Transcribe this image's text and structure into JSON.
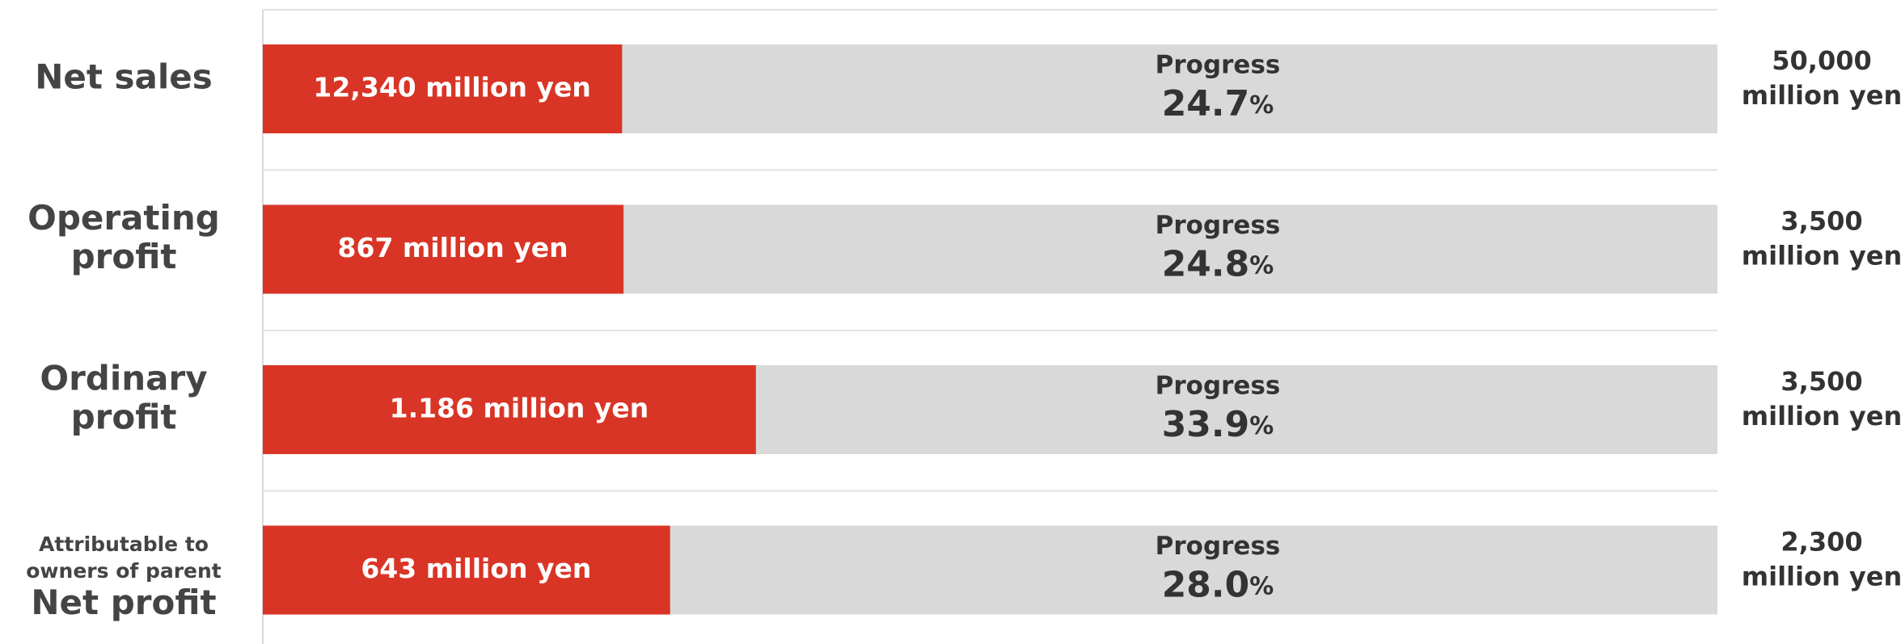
{
  "chart_data": {
    "type": "progress-bar",
    "categories": [
      [
        "Net sales"
      ],
      [
        "Operating",
        "profit"
      ],
      [
        "Ordinary",
        "profit"
      ],
      [
        "Net profit"
      ]
    ],
    "category_notes": [
      null,
      null,
      null,
      [
        "Attributable to",
        "owners of parent"
      ]
    ],
    "actual_labels": [
      "12,340 million yen",
      "867 million yen",
      "1.186 million yen",
      "643 million yen"
    ],
    "progress_label": "Progress",
    "values": [
      24.7,
      24.8,
      33.9,
      28.0
    ],
    "value_labels": [
      "24.7",
      "24.8",
      "33.9",
      "28.0"
    ],
    "value_unit": "%",
    "targets": [
      "50,000",
      "3,500",
      "3,500",
      "2,300"
    ],
    "target_unit": "million yen",
    "xlim": [
      0,
      100
    ],
    "color": "#d93526",
    "track_color": "#d9d9d9"
  }
}
